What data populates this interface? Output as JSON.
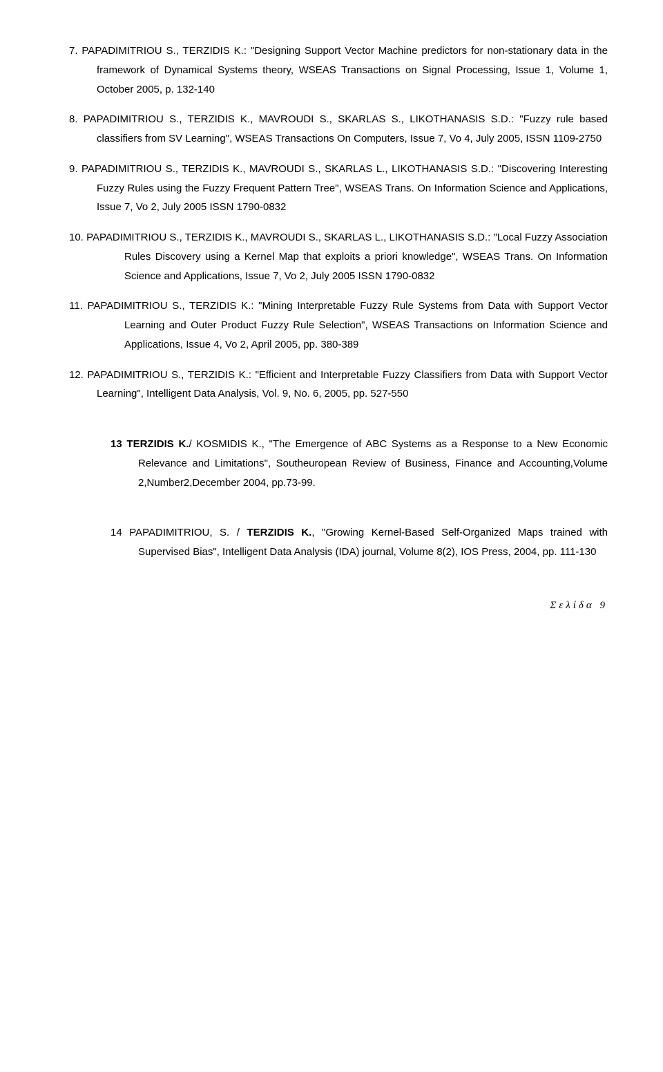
{
  "entries": [
    {
      "cls": "hang-1",
      "prefix": "7. ",
      "prefix_bold": false,
      "authors": "PAPADIMITRIOU S., TERZIDIS K.",
      "text": ": \"Designing Support Vector Machine predictors for non-stationary data in the framework of Dynamical Systems theory, WSEAS Transactions on Signal Processing, Issue 1, Volume 1, October 2005, p. 132-140"
    },
    {
      "cls": "hang-1",
      "prefix": "8. ",
      "prefix_bold": false,
      "authors": "PAPADIMITRIOU S., TERZIDIS K., MAVROUDI S., SKARLAS S., LIKOTHANASIS S.D.",
      "text": ": \"Fuzzy rule based classifiers from SV Learning\", WSEAS Transactions On Computers, Issue 7, Vo 4, July 2005, ISSN 1109-2750"
    },
    {
      "cls": "hang-1",
      "prefix": "9. ",
      "prefix_bold": false,
      "authors": "PAPADIMITRIOU S., TERZIDIS K., MAVROUDI S., SKARLAS L., LIKOTHANASIS S.D.",
      "text": ": \"Discovering Interesting Fuzzy Rules using the Fuzzy Frequent Pattern Tree\", WSEAS Trans. On Information Science and Applications, Issue 7, Vo 2, July 2005 ISSN 1790-0832"
    },
    {
      "cls": "hang-2",
      "prefix": "10. ",
      "prefix_bold": false,
      "authors": "PAPADIMITRIOU S., TERZIDIS K., MAVROUDI S., SKARLAS L., LIKOTHANASIS S.D.",
      "text": ": \"Local Fuzzy Association Rules Discovery using a Kernel Map that exploits a priori knowledge\", WSEAS Trans. On Information Science and Applications, Issue 7, Vo 2, July 2005 ISSN 1790-0832"
    },
    {
      "cls": "hang-2",
      "prefix": "11. ",
      "prefix_bold": false,
      "authors": "PAPADIMITRIOU S., TERZIDIS K.",
      "text": ": \"Mining Interpretable Fuzzy Rule Systems from Data with Support Vector Learning and Outer Product Fuzzy Rule Selection\", WSEAS Transactions on Information Science and Applications, Issue 4, Vo 2, April 2005, pp. 380-389"
    },
    {
      "cls": "hang-1",
      "prefix": "12. ",
      "prefix_bold": false,
      "authors": "PAPADIMITRIOU S., TERZIDIS K.",
      "text": ": \"Efficient and Interpretable Fuzzy Classifiers from Data with Support Vector Learning\", Intelligent Data Analysis, Vol. 9, No. 6, 2005, pp. 527-550"
    },
    {
      "cls": "hang-indent gap",
      "prefix": "13 TERZIDIS K.",
      "prefix_bold": true,
      "authors": "/ KOSMIDIS K.",
      "text": ", \"The Emergence of ABC Systems as a Response to a New Economic Relevance and Limitations\", Southeuropean Review of Business, Finance and Accounting,Volume 2,Number2,December 2004, pp.73-99."
    },
    {
      "cls": "hang-indent gap",
      "prefix": "14 ",
      "prefix_bold": false,
      "authors_pre": "PAPADIMITRIOU, S. / ",
      "authors_bold": "TERZIDIS K.",
      "text": ", \"Growing Kernel-Based Self-Organized Maps trained with Supervised Bias\", Intelligent Data Analysis (IDA) journal, Volume 8(2), IOS Press, 2004, pp. 111-130"
    }
  ],
  "footer": "Σελίδα 9"
}
